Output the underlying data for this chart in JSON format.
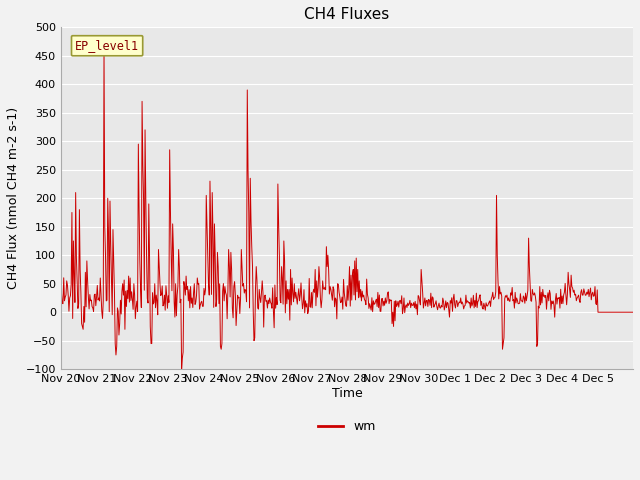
{
  "title": "CH4 Fluxes",
  "xlabel": "Time",
  "ylabel": "CH4 Flux (nmol CH4 m-2 s-1)",
  "ylim": [
    -100,
    500
  ],
  "line_color": "#cc0000",
  "legend_label": "wm",
  "text_label": "EP_level1",
  "plot_bg_color": "#e8e8e8",
  "fig_bg_color": "#f2f2f2",
  "grid_color": "#ffffff",
  "xtick_labels": [
    "Nov 20",
    "Nov 21",
    "Nov 22",
    "Nov 23",
    "Nov 24",
    "Nov 25",
    "Nov 26",
    "Nov 27",
    "Nov 28",
    "Nov 29",
    "Nov 30",
    "Dec 1",
    "Dec 2",
    "Dec 3",
    "Dec 4",
    "Dec 5"
  ],
  "xtick_positions": [
    0,
    48,
    96,
    144,
    192,
    240,
    288,
    336,
    384,
    432,
    480,
    528,
    576,
    624,
    672,
    720
  ],
  "ytick_values": [
    -100,
    -50,
    0,
    50,
    100,
    150,
    200,
    250,
    300,
    350,
    400,
    450,
    500
  ],
  "n_points": 768,
  "title_fontsize": 11,
  "axis_label_fontsize": 9,
  "tick_fontsize": 8
}
